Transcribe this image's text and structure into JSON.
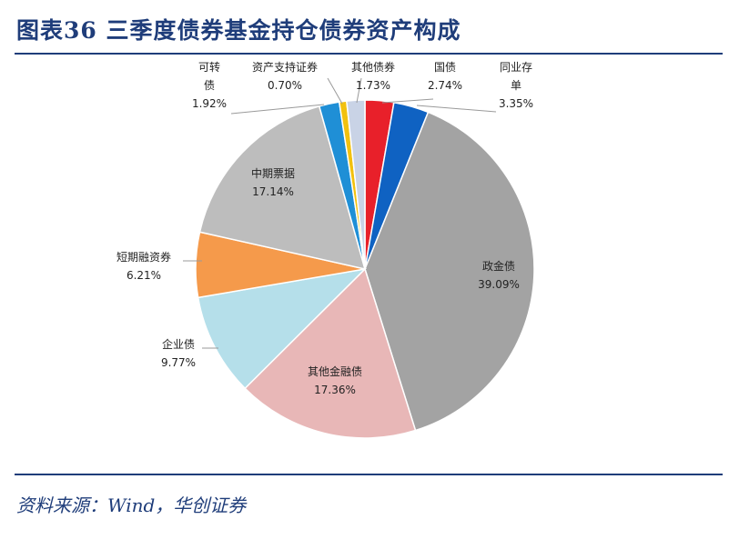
{
  "header": {
    "title": "图表36  三季度债券基金持仓债券资产构成"
  },
  "footer": {
    "source": "资料来源：Wind，华创证券"
  },
  "chart_data": {
    "type": "pie",
    "start": "12 o'clock, clockwise",
    "slices": [
      {
        "name": "国债",
        "value": 2.74,
        "label": "2.74%",
        "color": "#e8202a"
      },
      {
        "name": "同业存单",
        "value": 3.35,
        "label": "3.35%",
        "color": "#0f62c2"
      },
      {
        "name": "政金债",
        "value": 39.09,
        "label": "39.09%",
        "color": "#a3a3a3"
      },
      {
        "name": "其他金融债",
        "value": 17.36,
        "label": "17.36%",
        "color": "#e8b7b7"
      },
      {
        "name": "企业债",
        "value": 9.77,
        "label": "9.77%",
        "color": "#b5dfea"
      },
      {
        "name": "短期融资券",
        "value": 6.21,
        "label": "6.21%",
        "color": "#f59a4b"
      },
      {
        "name": "中期票据",
        "value": 17.14,
        "label": "17.14%",
        "color": "#bdbdbd"
      },
      {
        "name": "可转债",
        "value": 1.92,
        "label": "1.92%",
        "color": "#1f8fd6"
      },
      {
        "name": "资产支持证券",
        "value": 0.7,
        "label": "0.70%",
        "color": "#f2c10f"
      },
      {
        "name": "其他债券",
        "value": 1.73,
        "label": "1.73%",
        "color": "#c9d3e6"
      }
    ]
  }
}
